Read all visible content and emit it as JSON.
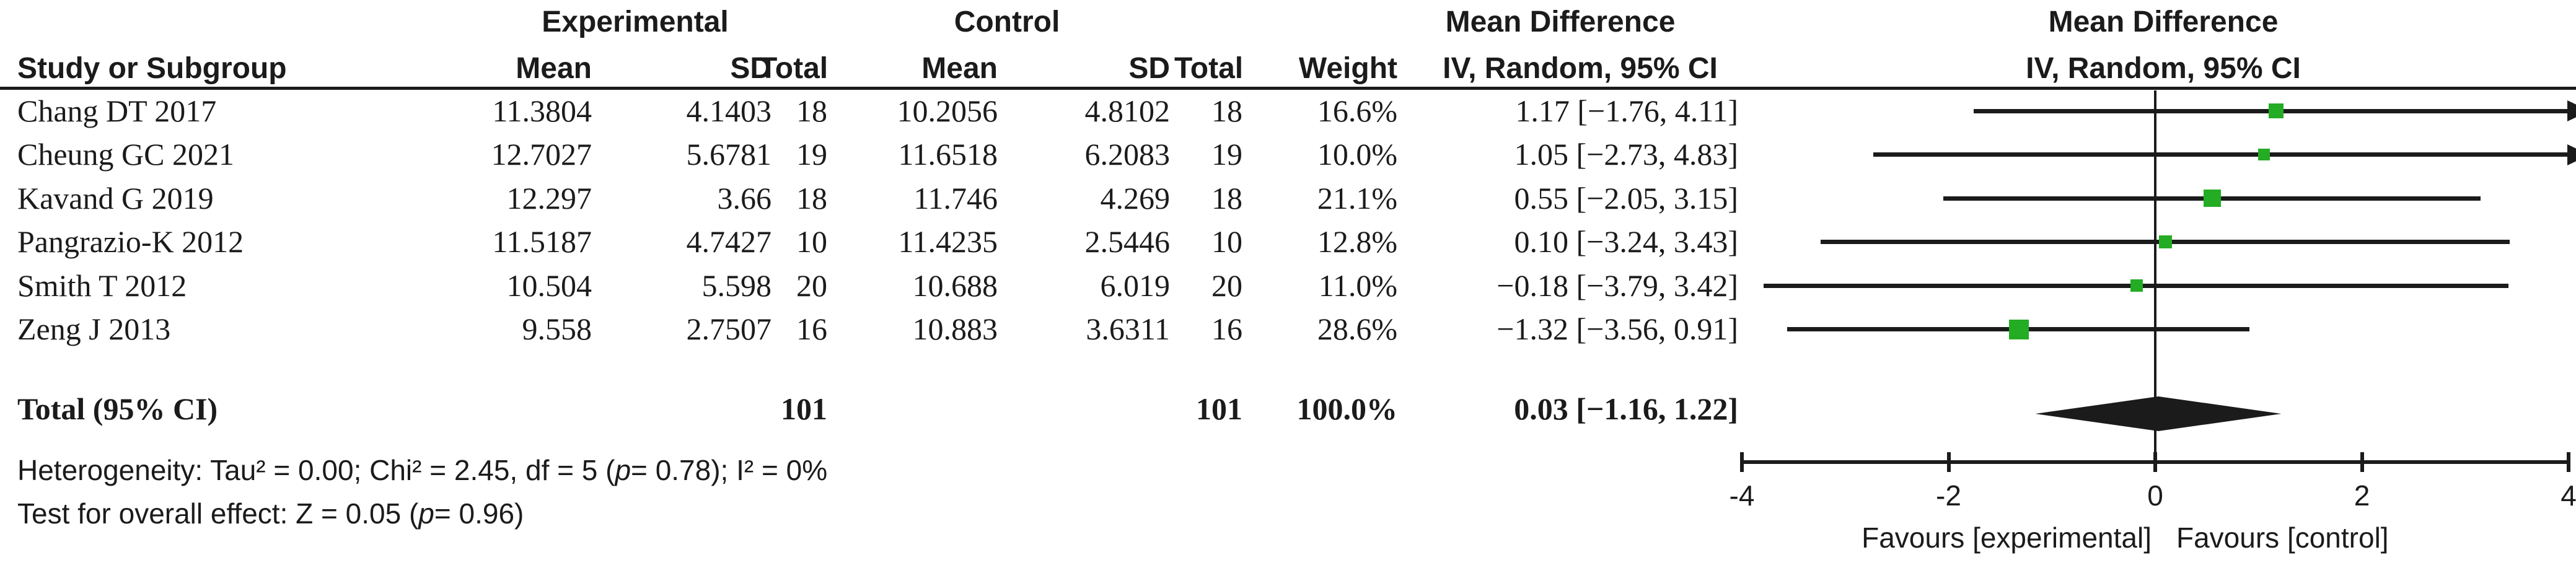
{
  "group_headers": {
    "experimental": "Experimental",
    "control": "Control",
    "mean_difference": "Mean Difference"
  },
  "columns": {
    "study": "Study or Subgroup",
    "mean": "Mean",
    "sd": "SD",
    "total": "Total",
    "weight": "Weight",
    "ci": "IV, Random, 95% CI"
  },
  "studies": [
    {
      "name": "Chang DT 2017",
      "exp_mean": "11.3804",
      "exp_sd": "4.1403",
      "exp_total": "18",
      "ctl_mean": "10.2056",
      "ctl_sd": "4.8102",
      "ctl_total": "18",
      "weight": "16.6%",
      "effect": "1.17 [−1.76, 4.11]"
    },
    {
      "name": "Cheung GC 2021",
      "exp_mean": "12.7027",
      "exp_sd": "5.6781",
      "exp_total": "19",
      "ctl_mean": "11.6518",
      "ctl_sd": "6.2083",
      "ctl_total": "19",
      "weight": "10.0%",
      "effect": "1.05 [−2.73, 4.83]"
    },
    {
      "name": "Kavand G 2019",
      "exp_mean": "12.297",
      "exp_sd": "3.66",
      "exp_total": "18",
      "ctl_mean": "11.746",
      "ctl_sd": "4.269",
      "ctl_total": "18",
      "weight": "21.1%",
      "effect": "0.55 [−2.05, 3.15]"
    },
    {
      "name": "Pangrazio-K 2012",
      "exp_mean": "11.5187",
      "exp_sd": "4.7427",
      "exp_total": "10",
      "ctl_mean": "11.4235",
      "ctl_sd": "2.5446",
      "ctl_total": "10",
      "weight": "12.8%",
      "effect": "0.10 [−3.24, 3.43]"
    },
    {
      "name": "Smith T 2012",
      "exp_mean": "10.504",
      "exp_sd": "5.598",
      "exp_total": "20",
      "ctl_mean": "10.688",
      "ctl_sd": "6.019",
      "ctl_total": "20",
      "weight": "11.0%",
      "effect": "−0.18 [−3.79, 3.42]"
    },
    {
      "name": "Zeng J 2013",
      "exp_mean": "9.558",
      "exp_sd": "2.7507",
      "exp_total": "16",
      "ctl_mean": "10.883",
      "ctl_sd": "3.6311",
      "ctl_total": "16",
      "weight": "28.6%",
      "effect": "−1.32 [−3.56, 0.91]"
    }
  ],
  "total_row": {
    "label": "Total (95% CI)",
    "exp_total": "101",
    "ctl_total": "101",
    "weight": "100.0%",
    "effect": "0.03 [−1.16, 1.22]"
  },
  "footer": {
    "het_prefix": "Heterogeneity: Tau² = 0.00; Chi² = 2.45, df = 5 (",
    "p": "p",
    "het_suffix": "= 0.78); I² = 0%",
    "overall_prefix": "Test for overall effect: Z = 0.05 (",
    "overall_suffix": "= 0.96)"
  },
  "axis": {
    "favours_left": "Favours [experimental]",
    "favours_right": "Favours [control]"
  },
  "chart_data": {
    "type": "forest",
    "effect_measure": "Mean Difference",
    "model": "IV, Random, 95% CI",
    "x_range": [
      -4,
      4
    ],
    "ticks": [
      -4,
      -2,
      0,
      2,
      4
    ],
    "tick_labels": [
      "-4",
      "-2",
      "0",
      "2",
      "4"
    ],
    "studies": [
      {
        "name": "Chang DT 2017",
        "md": 1.17,
        "ci": [
          -1.76,
          4.11
        ],
        "weight": 16.6
      },
      {
        "name": "Cheung GC 2021",
        "md": 1.05,
        "ci": [
          -2.73,
          4.83
        ],
        "weight": 10.0
      },
      {
        "name": "Kavand G 2019",
        "md": 0.55,
        "ci": [
          -2.05,
          3.15
        ],
        "weight": 21.1
      },
      {
        "name": "Pangrazio-K 2012",
        "md": 0.1,
        "ci": [
          -3.24,
          3.43
        ],
        "weight": 12.8
      },
      {
        "name": "Smith T 2012",
        "md": -0.18,
        "ci": [
          -3.79,
          3.42
        ],
        "weight": 11.0
      },
      {
        "name": "Zeng J 2013",
        "md": -1.32,
        "ci": [
          -3.56,
          0.91
        ],
        "weight": 28.6
      }
    ],
    "total": {
      "md": 0.03,
      "ci": [
        -1.16,
        1.22
      ]
    },
    "heterogeneity": {
      "tau2": 0.0,
      "chi2": 2.45,
      "df": 5,
      "p": 0.78,
      "i2_pct": 0
    },
    "overall_effect": {
      "z": 0.05,
      "p": 0.96
    },
    "marker_color": "#24AC24",
    "line_color": "#1b1b1b",
    "legend_position": "none",
    "grid": false
  }
}
